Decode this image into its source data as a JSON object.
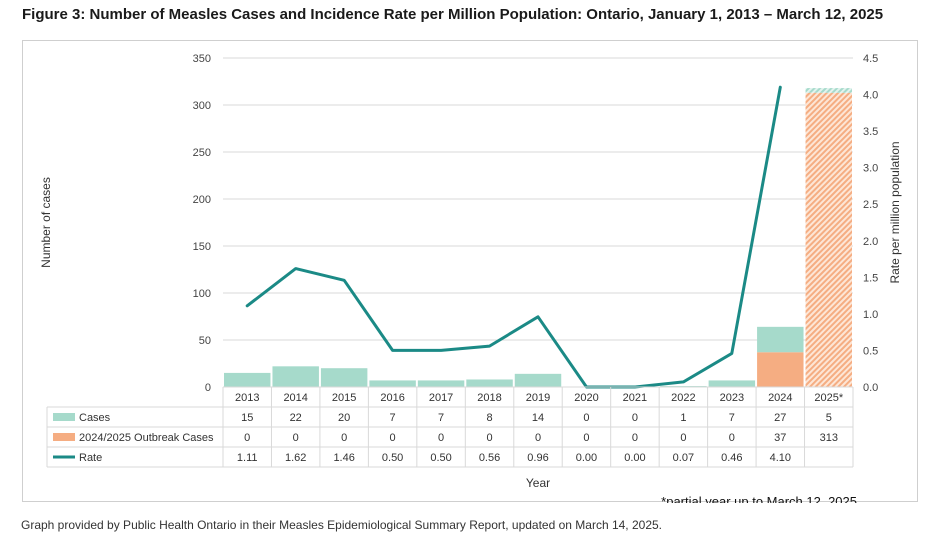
{
  "figure_title": "Figure 3: Number of Measles Cases and Incidence Rate per Million Population: Ontario, January 1, 2013 – March 12, 2025",
  "caption": "Graph provided by Public Health Ontario in their Measles Epidemiological Summary Report, updated on March 14, 2025.",
  "footnote": "*partial year up to March 12, 2025",
  "colors": {
    "cases": "#a6dacb",
    "outbreak": "#f5ad82",
    "rate": "#1b8a86",
    "grid": "#d9d9d9"
  },
  "chart_data": {
    "type": "bar",
    "title": "Number of Measles Cases and Incidence Rate per Million Population: Ontario, January 1, 2013 – March 12, 2025",
    "xlabel": "Year",
    "ylabel": "Number of cases",
    "y2label": "Rate per million population",
    "ylim": [
      0,
      350
    ],
    "y_ticks": [
      "0",
      "50",
      "100",
      "150",
      "200",
      "250",
      "300",
      "350"
    ],
    "y2lim": [
      0,
      4.5
    ],
    "y2_ticks": [
      "0.0",
      "0.5",
      "1.0",
      "1.5",
      "2.0",
      "2.5",
      "3.0",
      "3.5",
      "4.0",
      "4.5"
    ],
    "categories": [
      "2013",
      "2014",
      "2015",
      "2016",
      "2017",
      "2018",
      "2019",
      "2020",
      "2021",
      "2022",
      "2023",
      "2024",
      "2025*"
    ],
    "stacked": true,
    "series": [
      {
        "name": "Cases",
        "kind": "bar",
        "values": [
          15,
          22,
          20,
          7,
          7,
          8,
          14,
          0,
          0,
          1,
          7,
          27,
          5
        ],
        "labels": [
          "15",
          "22",
          "20",
          "7",
          "7",
          "8",
          "14",
          "0",
          "0",
          "1",
          "7",
          "27",
          "5"
        ]
      },
      {
        "name": "2024/2025 Outbreak Cases",
        "kind": "bar",
        "values": [
          0,
          0,
          0,
          0,
          0,
          0,
          0,
          0,
          0,
          0,
          0,
          37,
          313
        ],
        "labels": [
          "0",
          "0",
          "0",
          "0",
          "0",
          "0",
          "0",
          "0",
          "0",
          "0",
          "0",
          "37",
          "313"
        ]
      },
      {
        "name": "Rate",
        "kind": "line",
        "axis": "y2",
        "values": [
          1.11,
          1.62,
          1.46,
          0.5,
          0.5,
          0.56,
          0.96,
          0.0,
          0.0,
          0.07,
          0.46,
          4.1,
          null
        ],
        "labels": [
          "1.11",
          "1.62",
          "1.46",
          "0.50",
          "0.50",
          "0.56",
          "0.96",
          "0.00",
          "0.00",
          "0.07",
          "0.46",
          "4.10",
          ""
        ]
      }
    ],
    "partial_category": "2025*",
    "grid": true,
    "legend": "data-table-left"
  }
}
